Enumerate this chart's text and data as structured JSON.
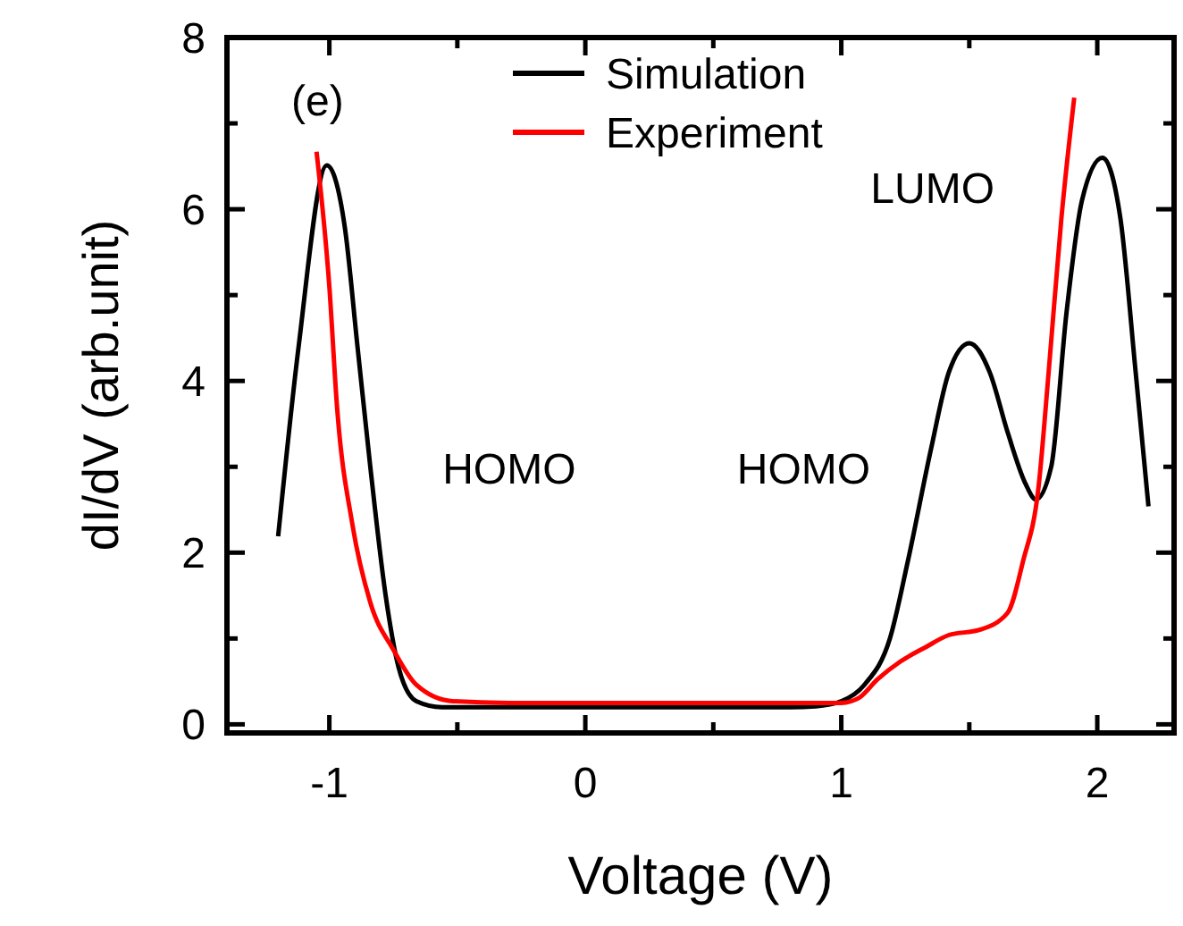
{
  "chart_data": {
    "type": "line",
    "xlabel": "Voltage (V)",
    "ylabel": "dI/dV (arb.unit)",
    "xlim": [
      -1.4,
      2.3
    ],
    "ylim": [
      -0.1,
      8
    ],
    "xticks": [
      -1,
      {
        "value": -0.5,
        "label": null
      },
      0,
      {
        "value": 0.5,
        "label": null
      },
      1,
      {
        "value": 1.5,
        "label": null
      },
      2
    ],
    "yticks": [
      0,
      {
        "value": 1,
        "label": null
      },
      2,
      {
        "value": 3,
        "label": null
      },
      4,
      {
        "value": 5,
        "label": null
      },
      6,
      {
        "value": 7,
        "label": null
      },
      8
    ],
    "legend": "top left",
    "grid": false,
    "line_style": "solid",
    "marker": "none",
    "annotations": [
      "(e)",
      "HOMO",
      "HOMO",
      "LUMO"
    ],
    "series": [
      {
        "name": "Simulation",
        "color": "#000000",
        "x": [
          -1.2,
          -1.12,
          -1.01,
          -0.94,
          -0.89,
          -0.84,
          -0.78,
          -0.73,
          -0.66,
          -0.56,
          -0.3,
          0,
          0.3,
          0.6,
          0.8,
          0.9,
          1.0,
          1.09,
          1.19,
          1.26,
          1.35,
          1.42,
          1.5,
          1.58,
          1.65,
          1.72,
          1.76,
          1.82,
          1.88,
          1.94,
          2.02,
          2.09,
          2.15,
          2.2
        ],
        "values": [
          2.19,
          4.4,
          6.51,
          5.8,
          4.4,
          3.0,
          1.5,
          0.67,
          0.27,
          0.2,
          0.2,
          0.2,
          0.2,
          0.2,
          0.2,
          0.21,
          0.27,
          0.46,
          1.0,
          1.9,
          3.2,
          4.1,
          4.44,
          4.1,
          3.4,
          2.8,
          2.62,
          3.0,
          4.8,
          6.1,
          6.6,
          5.9,
          4.1,
          2.54
        ]
      },
      {
        "name": "Experiment",
        "color": "#ff0000",
        "x": [
          -1.05,
          -1.0,
          -0.97,
          -0.91,
          -0.84,
          -0.75,
          -0.66,
          -0.52,
          -0.3,
          0,
          0.3,
          0.6,
          0.9,
          1.0,
          1.07,
          1.14,
          1.23,
          1.33,
          1.42,
          1.54,
          1.65,
          1.71,
          1.77,
          1.81,
          1.86,
          1.91
        ],
        "values": [
          6.67,
          5.1,
          3.7,
          2.33,
          1.42,
          0.87,
          0.46,
          0.27,
          0.25,
          0.25,
          0.25,
          0.25,
          0.25,
          0.25,
          0.31,
          0.52,
          0.73,
          0.9,
          1.04,
          1.1,
          1.3,
          1.9,
          2.75,
          4.1,
          5.9,
          7.3
        ]
      }
    ]
  }
}
